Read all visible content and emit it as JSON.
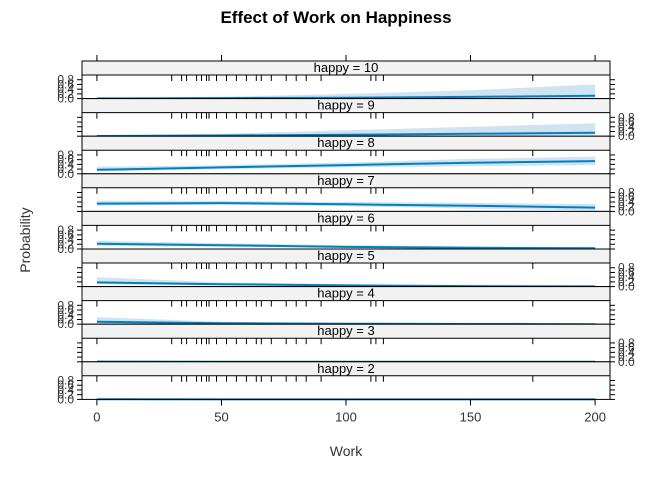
{
  "chart_data": {
    "type": "line",
    "title": "Effect of Work on Happiness",
    "xlabel": "Work",
    "ylabel": "Probability",
    "xlim": [
      -6,
      206
    ],
    "ylim": [
      0,
      1
    ],
    "x_ticks": [
      0,
      50,
      100,
      150,
      200
    ],
    "y_ticks": [
      "0.0",
      "0.2",
      "0.4",
      "0.6",
      "0.8"
    ],
    "x": [
      0,
      50,
      100,
      150,
      200
    ],
    "line_color": "#0080c0",
    "band_color": "#cfe3f1",
    "rug": [
      0,
      30,
      34,
      36,
      40,
      42,
      44,
      45,
      48,
      52,
      56,
      60,
      64,
      66,
      70,
      76,
      80,
      84,
      90,
      110,
      112,
      115,
      175
    ],
    "panels": [
      {
        "label": "happy = 10",
        "values": [
          0.01,
          0.02,
          0.04,
          0.07,
          0.12
        ],
        "lower": [
          0.0,
          0.0,
          0.01,
          0.02,
          0.03
        ],
        "upper": [
          0.02,
          0.08,
          0.2,
          0.35,
          0.6
        ]
      },
      {
        "label": "happy = 9",
        "values": [
          0.01,
          0.03,
          0.06,
          0.1,
          0.15
        ],
        "lower": [
          0.0,
          0.01,
          0.02,
          0.04,
          0.05
        ],
        "upper": [
          0.03,
          0.1,
          0.25,
          0.4,
          0.55
        ]
      },
      {
        "label": "happy = 8",
        "values": [
          0.17,
          0.27,
          0.37,
          0.47,
          0.54
        ],
        "lower": [
          0.1,
          0.2,
          0.27,
          0.32,
          0.37
        ],
        "upper": [
          0.3,
          0.36,
          0.48,
          0.63,
          0.73
        ]
      },
      {
        "label": "happy = 7",
        "values": [
          0.33,
          0.35,
          0.3,
          0.24,
          0.16
        ],
        "lower": [
          0.24,
          0.29,
          0.22,
          0.12,
          0.04
        ],
        "upper": [
          0.45,
          0.45,
          0.4,
          0.36,
          0.31
        ]
      },
      {
        "label": "happy = 6",
        "values": [
          0.22,
          0.16,
          0.09,
          0.05,
          0.03
        ],
        "lower": [
          0.13,
          0.1,
          0.04,
          0.01,
          0.0
        ],
        "upper": [
          0.35,
          0.24,
          0.16,
          0.11,
          0.08
        ]
      },
      {
        "label": "happy = 5",
        "values": [
          0.18,
          0.1,
          0.05,
          0.02,
          0.01
        ],
        "lower": [
          0.1,
          0.05,
          0.01,
          0.0,
          0.0
        ],
        "upper": [
          0.4,
          0.18,
          0.1,
          0.06,
          0.04
        ]
      },
      {
        "label": "happy = 4",
        "values": [
          0.1,
          0.04,
          0.02,
          0.01,
          0.0
        ],
        "lower": [
          0.04,
          0.01,
          0.0,
          0.0,
          0.0
        ],
        "upper": [
          0.3,
          0.1,
          0.05,
          0.03,
          0.02
        ]
      },
      {
        "label": "happy = 3",
        "values": [
          0.01,
          0.0,
          0.0,
          0.0,
          0.0
        ],
        "lower": [
          0.0,
          0.0,
          0.0,
          0.0,
          0.0
        ],
        "upper": [
          0.05,
          0.02,
          0.01,
          0.01,
          0.01
        ]
      },
      {
        "label": "happy = 2",
        "values": [
          0.01,
          0.0,
          0.0,
          0.0,
          0.0
        ],
        "lower": [
          0.0,
          0.0,
          0.0,
          0.0,
          0.0
        ],
        "upper": [
          0.04,
          0.02,
          0.01,
          0.01,
          0.01
        ]
      }
    ]
  }
}
